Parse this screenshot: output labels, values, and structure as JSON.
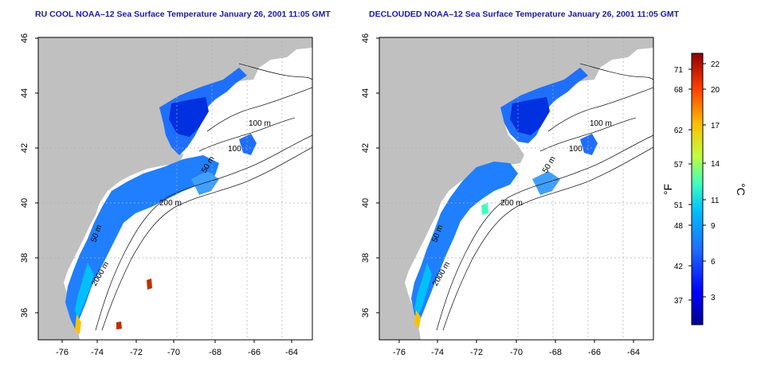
{
  "maps": [
    {
      "title": "RU COOL NOAA–12 Sea Surface Temperature January 26, 2001 11:05 GMT",
      "y_ticks": [
        "36",
        "38",
        "40",
        "42",
        "44",
        "46"
      ],
      "x_ticks": [
        "-76",
        "-74",
        "-72",
        "-70",
        "-68",
        "-66",
        "-64"
      ],
      "contour_labels": [
        "100 m",
        "100",
        "50 m",
        "200 m",
        "50 m",
        "2000 m"
      ]
    },
    {
      "title": "DECLOUDED NOAA–12 Sea Surface Temperature January 26, 2001 11:05 GMT",
      "y_ticks": [
        "36",
        "38",
        "40",
        "42",
        "44",
        "46"
      ],
      "x_ticks": [
        "-76",
        "-74",
        "-72",
        "-70",
        "-68",
        "-66",
        "-64"
      ],
      "contour_labels": [
        "100 m",
        "100",
        "50 m",
        "200 m",
        "50 m",
        "2000 m"
      ]
    }
  ],
  "colorbar": {
    "f_label": "°F",
    "c_label": "°C",
    "f_ticks": [
      "71",
      "68",
      "62",
      "57",
      "51",
      "48",
      "42",
      "37"
    ],
    "c_ticks": [
      "22",
      "20",
      "17",
      "14",
      "11",
      "9",
      "6",
      "3"
    ],
    "colors": [
      "#00008f",
      "#0000ff",
      "#1f6fff",
      "#00bfff",
      "#3fffbf",
      "#bfff3f",
      "#ffbf00",
      "#ff3f00",
      "#8f0000"
    ]
  },
  "land_color": "#c0c0c0",
  "title_color": "#1a1aa8"
}
